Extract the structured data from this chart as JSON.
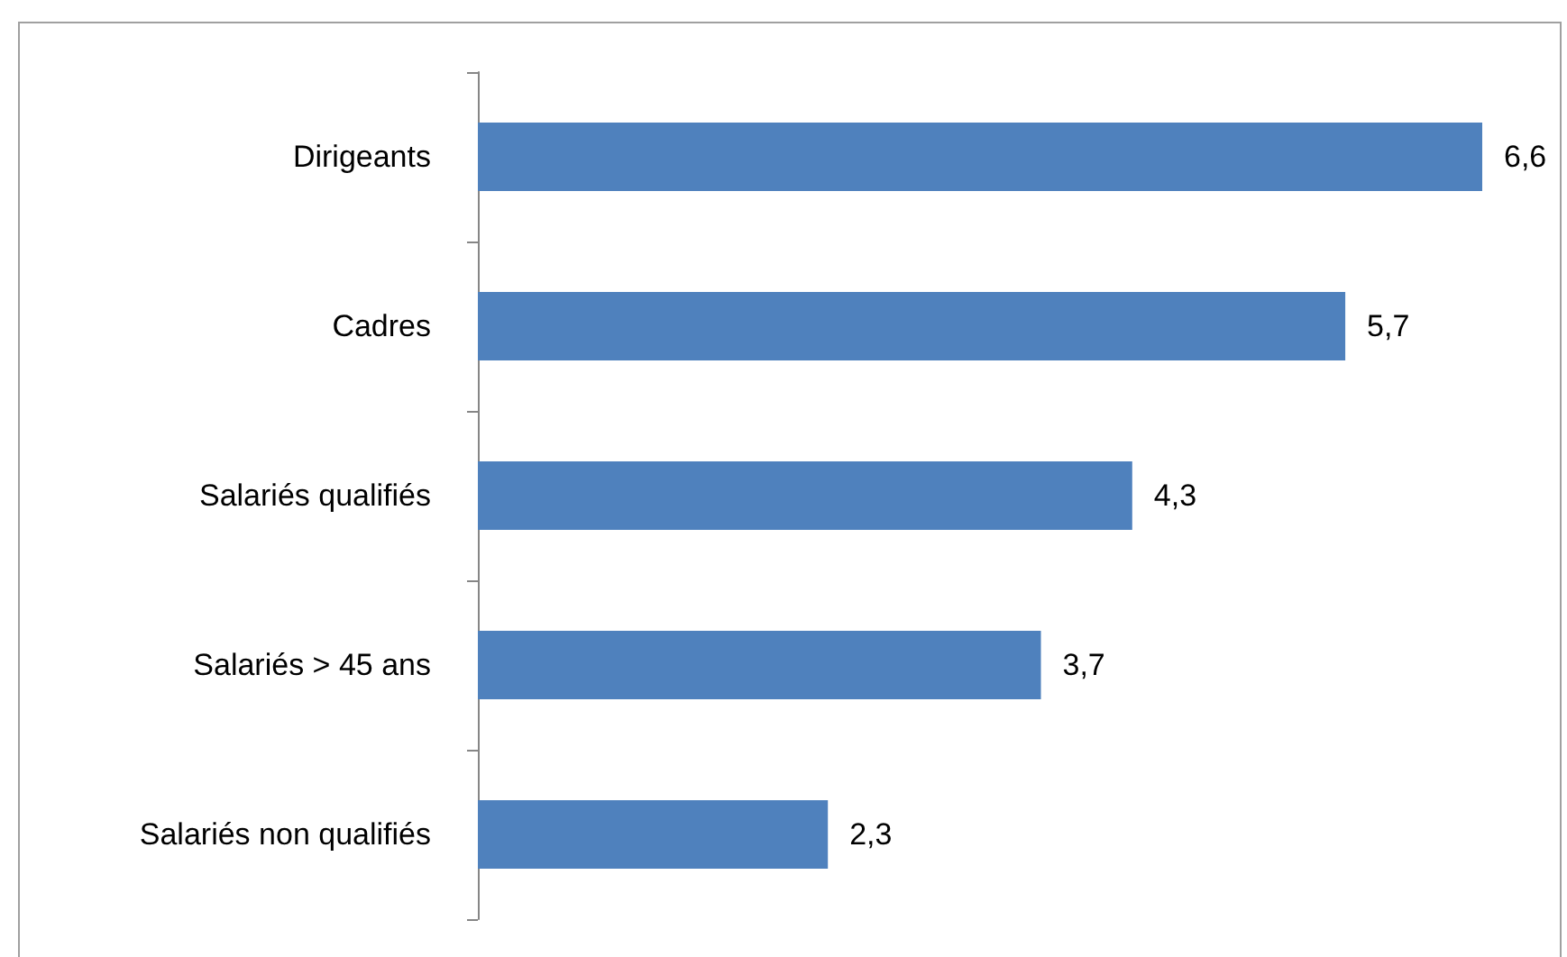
{
  "chart_data": {
    "type": "bar",
    "orientation": "horizontal",
    "categories": [
      "Dirigeants",
      "Cadres",
      "Salariés qualifiés",
      "Salariés > 45 ans",
      "Salariés non qualifiés"
    ],
    "values": [
      6.6,
      5.7,
      4.3,
      3.7,
      2.3
    ],
    "value_labels": [
      "6,6",
      "5,7",
      "4,3",
      "3,7",
      "2,3"
    ],
    "color": "#4f81bd"
  }
}
